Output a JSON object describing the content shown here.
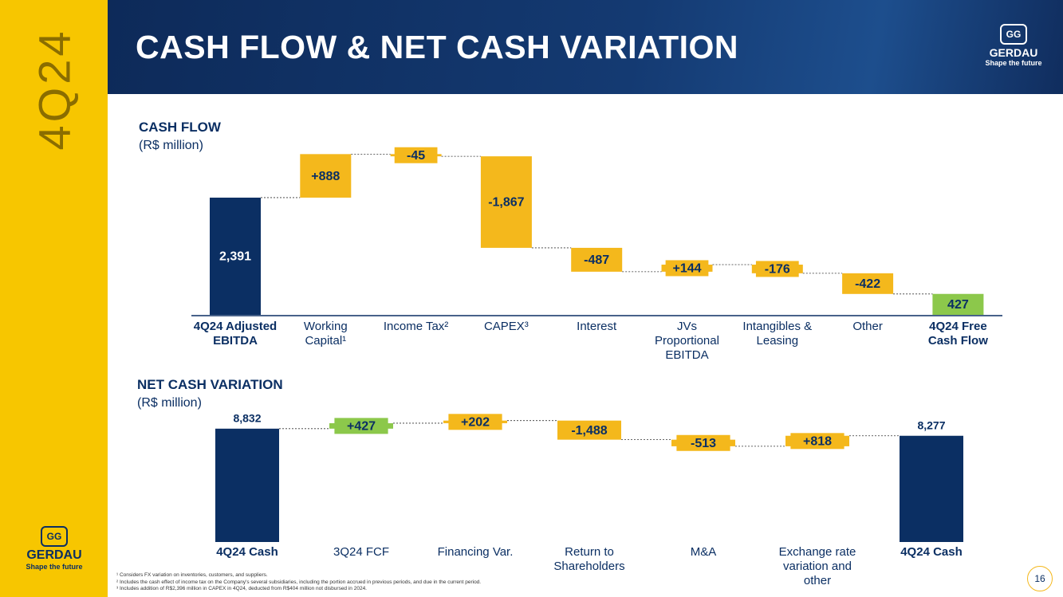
{
  "header": {
    "title": "CASH FLOW & NET CASH VARIATION",
    "quarter": "4Q24",
    "logo": "GERDAU",
    "tagline": "Shape the future"
  },
  "chart_data": [
    {
      "type": "waterfall",
      "title": "CASH FLOW",
      "subtitle": "(R$ million)",
      "categories": [
        "4Q24 Adjusted EBITDA",
        "Working Capital¹",
        "Income Tax²",
        "CAPEX³",
        "Interest",
        "JVs Proportional EBITDA",
        "Intangibles & Leasing",
        "Other",
        "4Q24 Free Cash Flow"
      ],
      "values": [
        2391,
        888,
        -45,
        -1867,
        -487,
        144,
        -176,
        -422,
        427
      ],
      "value_labels": [
        "2,391",
        "+888",
        "-45",
        "-1,867",
        "-487",
        "+144",
        "-176",
        "-422",
        "427"
      ],
      "colors": [
        "#0b2f63",
        "#f4b81c",
        "#f4b81c",
        "#f4b81c",
        "#f4b81c",
        "#f4b81c",
        "#f4b81c",
        "#f4b81c",
        "#8cc84b"
      ]
    },
    {
      "type": "waterfall",
      "title": "NET CASH VARIATION",
      "subtitle": "(R$ million)",
      "categories": [
        "4Q24 Cash",
        "3Q24 FCF",
        "Financing Var.",
        "Return to Shareholders",
        "M&A",
        "Exchange rate variation and other",
        "4Q24 Cash"
      ],
      "values": [
        8832,
        427,
        202,
        -1488,
        -513,
        818,
        8277
      ],
      "value_labels": [
        "8,832",
        "+427",
        "+202",
        "-1,488",
        "-513",
        "+818",
        "8,277"
      ],
      "colors": [
        "#0b2f63",
        "#8cc84b",
        "#f4b81c",
        "#f4b81c",
        "#f4b81c",
        "#f4b81c",
        "#0b2f63"
      ]
    }
  ],
  "footnotes": [
    "¹ Considers FX variation on inventories, customers, and suppliers.",
    "² Includes the cash effect of income tax on the Company's several subsidiaries, including the portion accrued in previous periods, and due in the current period.",
    "³ Includes addition of R$2,396 million in CAPEX in 4Q24, deducted from R$404 million not disbursed in 2024."
  ],
  "page_number": 16
}
